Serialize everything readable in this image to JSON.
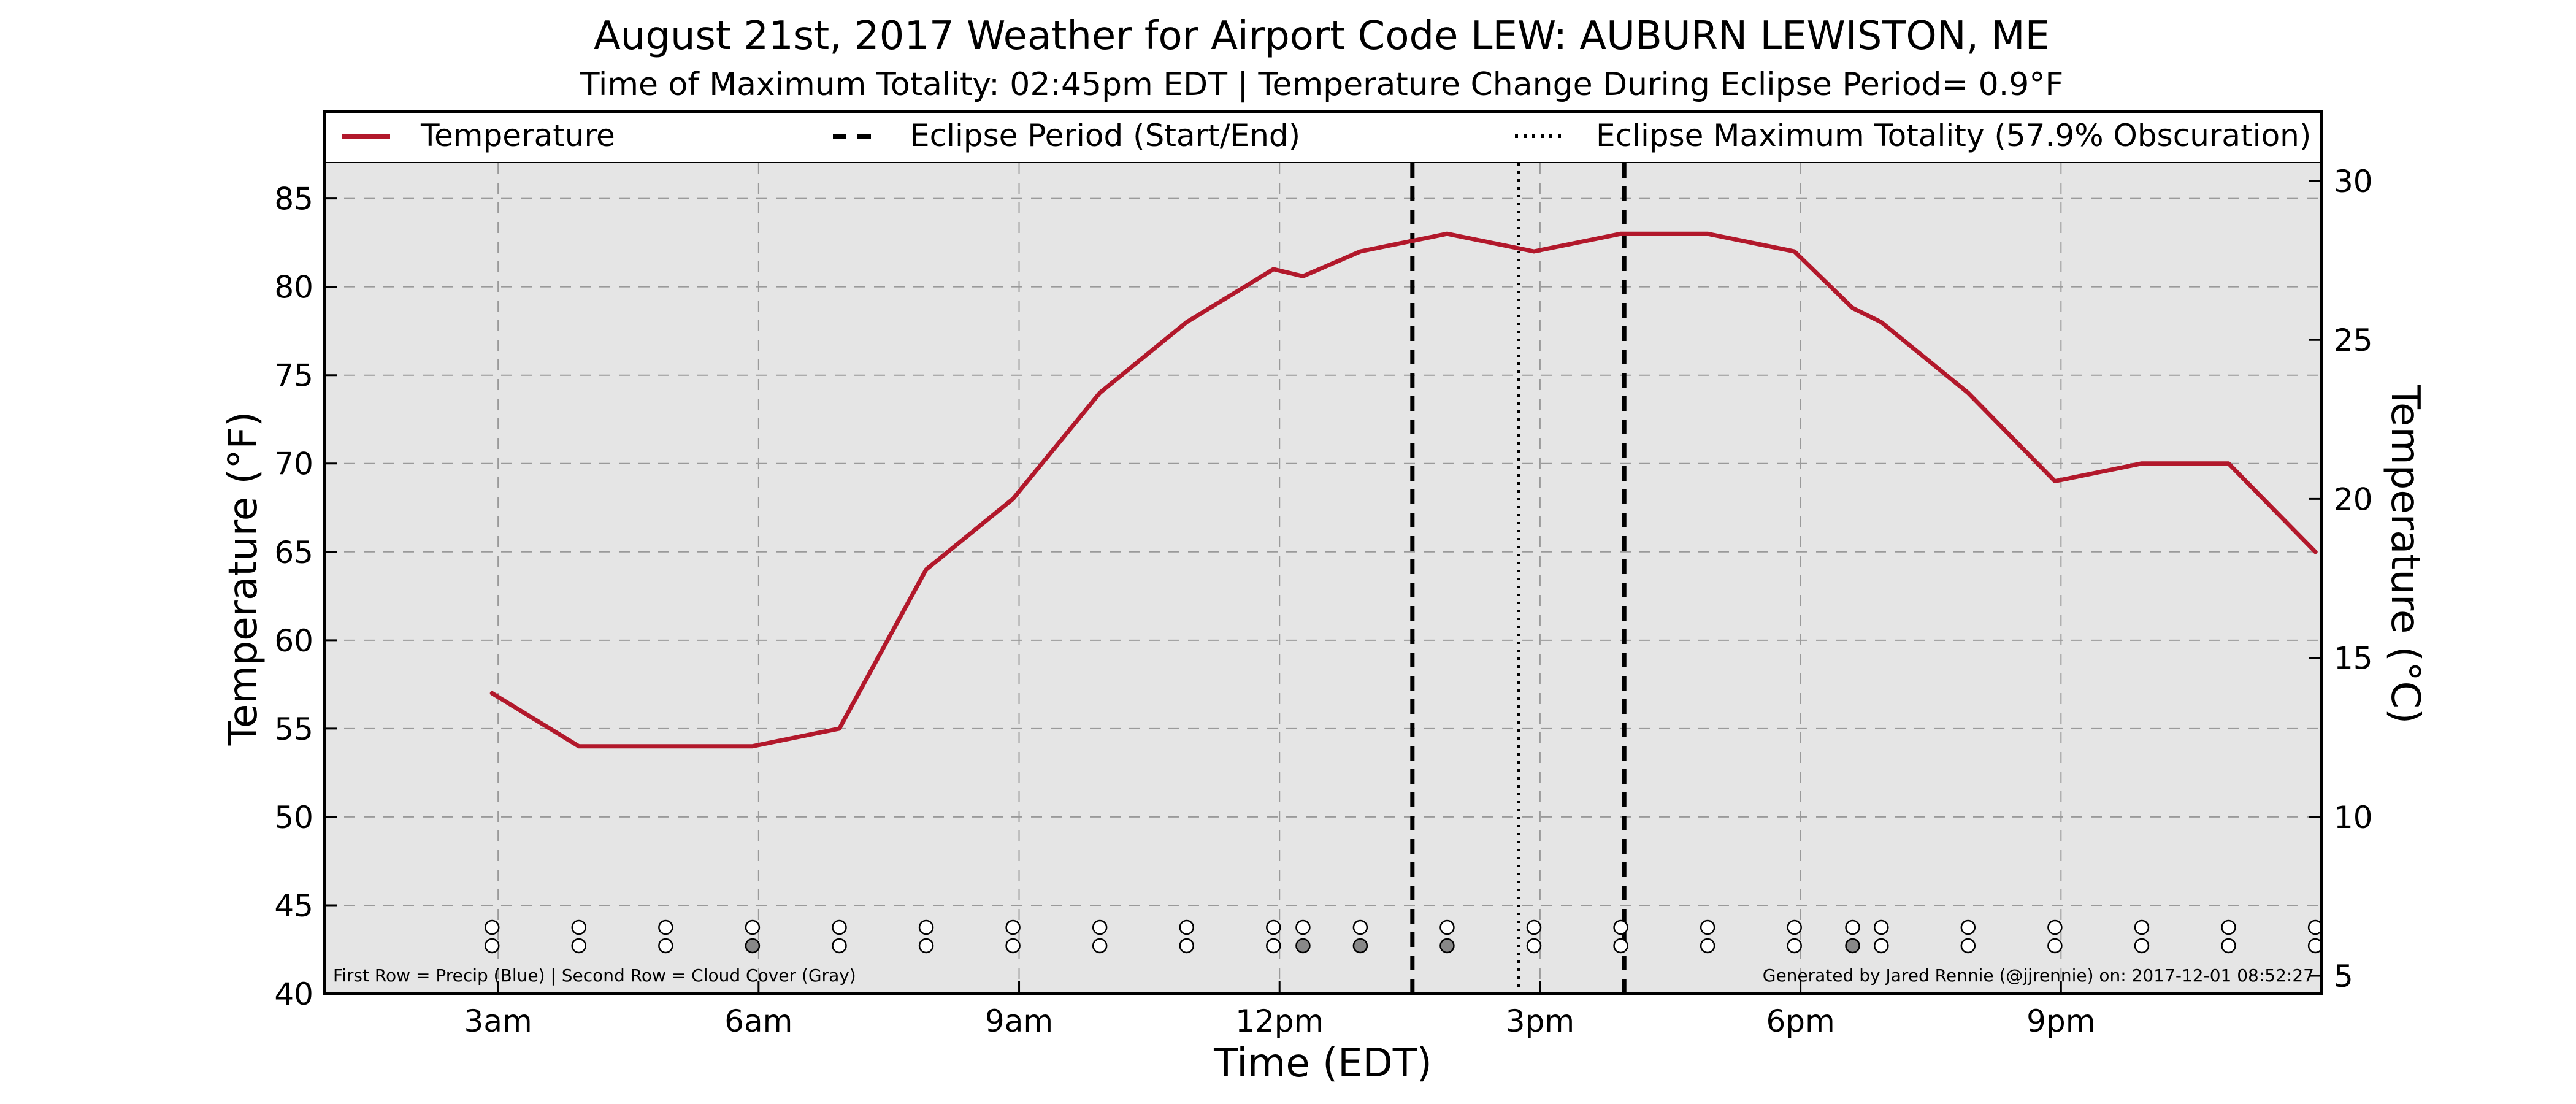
{
  "chart_data": {
    "type": "line",
    "title": "August 21st, 2017 Weather for Airport Code LEW: AUBURN LEWISTON, ME",
    "subtitle": "Time of Maximum Totality: 02:45pm EDT | Temperature Change During Eclipse Period= 0.9°F",
    "xlabel": "Time (EDT)",
    "ylabel_left": "Temperature (°F)",
    "ylabel_right": "Temperature (°C)",
    "x_unit": "hours after midnight EDT",
    "xlim": [
      1.0,
      24.0
    ],
    "ylim": [
      40,
      87
    ],
    "y2lim": [
      4.44,
      30.56
    ],
    "grid": true,
    "legend_placement": "top",
    "xticks": [
      {
        "value": 3,
        "label": "3am"
      },
      {
        "value": 6,
        "label": "6am"
      },
      {
        "value": 9,
        "label": "9am"
      },
      {
        "value": 12,
        "label": "12pm"
      },
      {
        "value": 15,
        "label": "3pm"
      },
      {
        "value": 18,
        "label": "6pm"
      },
      {
        "value": 21,
        "label": "9pm"
      }
    ],
    "yticks_left": [
      40,
      45,
      50,
      55,
      60,
      65,
      70,
      75,
      80,
      85
    ],
    "yticks_right": [
      5,
      10,
      15,
      20,
      25,
      30
    ],
    "legend": [
      {
        "label": "Temperature",
        "style": "solid"
      },
      {
        "label": "Eclipse Period (Start/End)",
        "style": "dashed"
      },
      {
        "label": "Eclipse Maximum Totality (57.9% Obscuration)",
        "style": "dotted"
      }
    ],
    "series": [
      {
        "name": "Temperature",
        "color": "#b2182b",
        "x": [
          2.93,
          3.93,
          4.93,
          5.93,
          6.93,
          7.93,
          8.93,
          9.93,
          10.93,
          11.93,
          12.27,
          12.93,
          13.93,
          14.93,
          15.93,
          16.93,
          17.93,
          18.6,
          18.93,
          19.93,
          20.93,
          21.93,
          22.93,
          23.93
        ],
        "y": [
          57,
          54,
          54,
          54,
          55,
          64,
          68,
          74,
          78,
          81,
          80.6,
          82,
          83,
          82,
          83,
          83,
          82,
          78.8,
          78,
          74,
          69,
          70,
          70,
          65
        ]
      }
    ],
    "eclipse_start": 13.53,
    "eclipse_end": 15.97,
    "eclipse_max": 14.75,
    "indicator_row_labels": [
      "Precip",
      "Cloud Cover"
    ],
    "indicators": {
      "x": [
        2.93,
        3.93,
        4.93,
        5.93,
        6.93,
        7.93,
        8.93,
        9.93,
        10.93,
        11.93,
        12.27,
        12.93,
        13.93,
        14.93,
        15.93,
        16.93,
        17.93,
        18.6,
        18.93,
        19.93,
        20.93,
        21.93,
        22.93,
        23.93
      ],
      "precip": [
        0,
        0,
        0,
        0,
        0,
        0,
        0,
        0,
        0,
        0,
        0,
        0,
        0,
        0,
        0,
        0,
        0,
        0,
        0,
        0,
        0,
        0,
        0,
        0
      ],
      "cloud": [
        0,
        0,
        0,
        1,
        0,
        0,
        0,
        0,
        0,
        0,
        1,
        1,
        1,
        0,
        0,
        0,
        0,
        1,
        0,
        0,
        0,
        0,
        0,
        0
      ]
    },
    "colors": {
      "temperature": "#b2182b",
      "plot_background": "#e5e5e5",
      "cloud_marker": "#888888",
      "precip_marker": "#4a74c9"
    },
    "footnote_left": "First Row = Precip (Blue) | Second Row = Cloud Cover (Gray)",
    "footnote_right": "Generated by Jared Rennie (@jjrennie) on: 2017-12-01 08:52:27"
  }
}
